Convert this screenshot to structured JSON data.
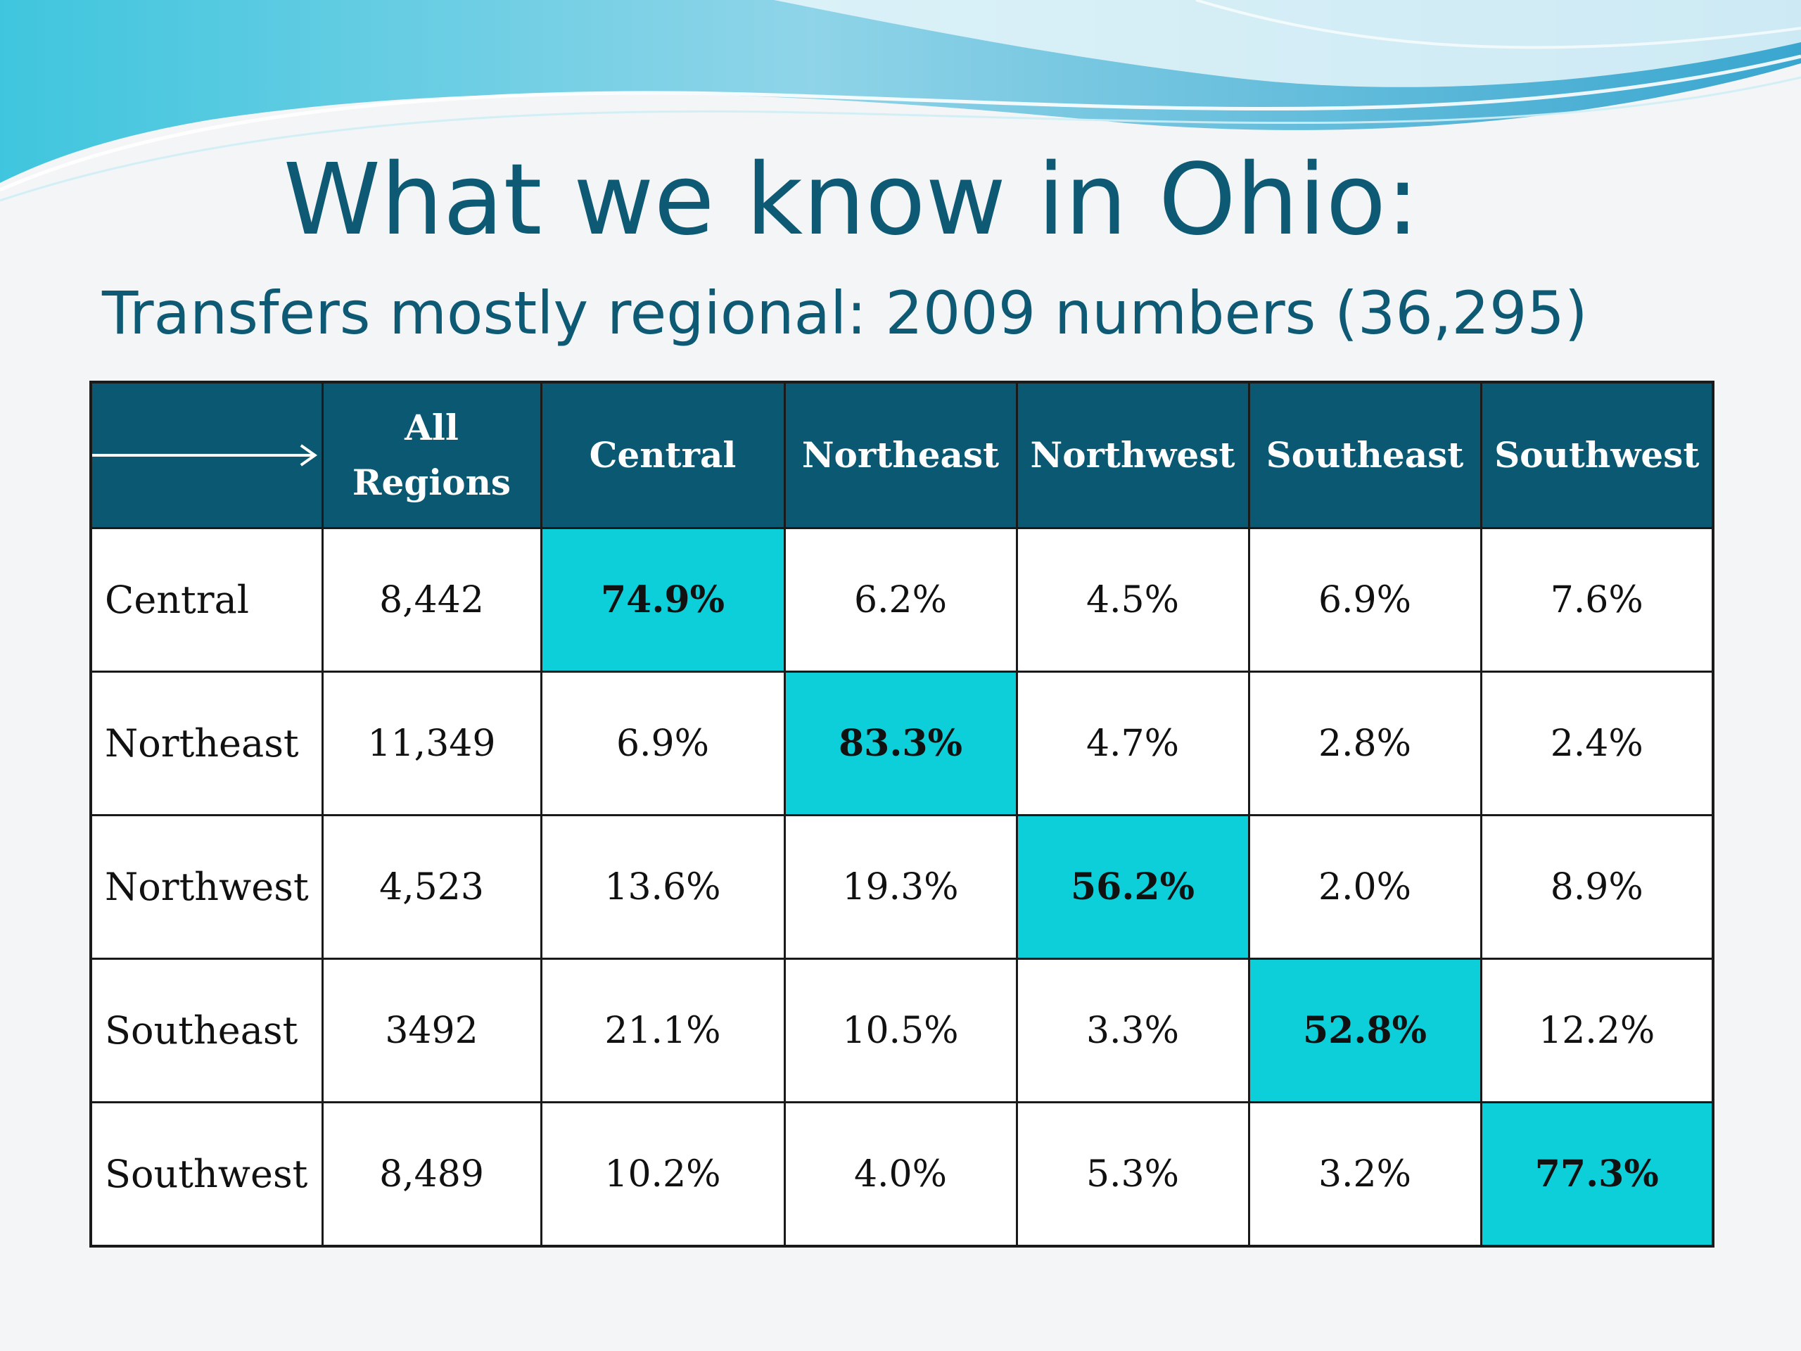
{
  "slide": {
    "title": "What we know in Ohio:",
    "subtitle": "Transfers mostly regional: 2009 numbers (36,295)"
  },
  "colors": {
    "title_text": "#0e5a74",
    "header_fill": "#0b5872",
    "highlight_fill": "#0ccfd9",
    "background": "#f3f5f6"
  },
  "table": {
    "corner_icon": "right-arrow-icon",
    "columns": [
      "All Regions",
      "Central",
      "Northeast",
      "Northwest",
      "Southeast",
      "Southwest"
    ],
    "rows": [
      {
        "region": "Central",
        "cells": [
          "8,442",
          "74.9%",
          "6.2%",
          "4.5%",
          "6.9%",
          "7.6%"
        ]
      },
      {
        "region": "Northeast",
        "cells": [
          "11,349",
          "6.9%",
          "83.3%",
          "4.7%",
          "2.8%",
          "2.4%"
        ]
      },
      {
        "region": "Northwest",
        "cells": [
          "4,523",
          "13.6%",
          "19.3%",
          "56.2%",
          "2.0%",
          "8.9%"
        ]
      },
      {
        "region": "Southeast",
        "cells": [
          "3492",
          "21.1%",
          "10.5%",
          "3.3%",
          "52.8%",
          "12.2%"
        ]
      },
      {
        "region": "Southwest",
        "cells": [
          "8,489",
          "10.2%",
          "4.0%",
          "5.3%",
          "3.2%",
          "77.3%"
        ]
      }
    ]
  }
}
